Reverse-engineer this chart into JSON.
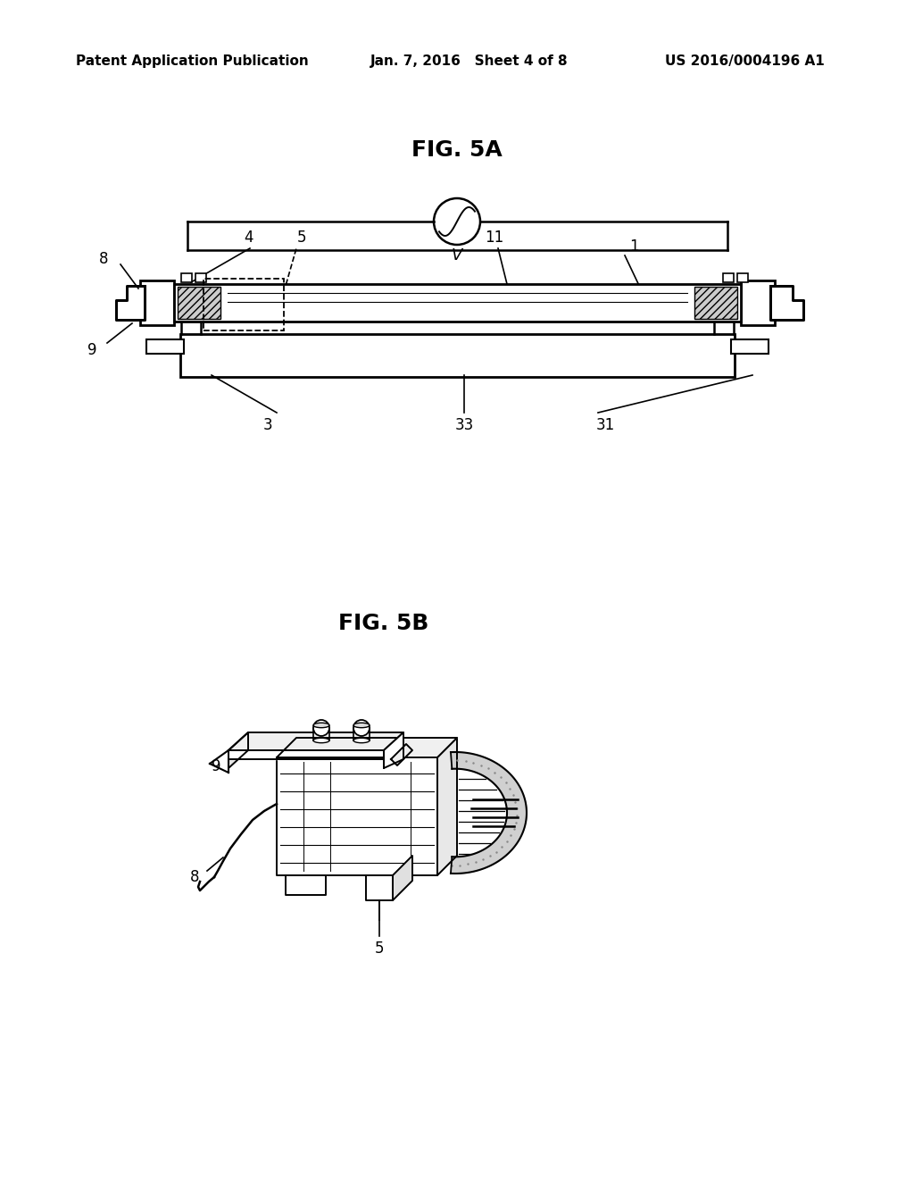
{
  "background_color": "#ffffff",
  "header_left": "Patent Application Publication",
  "header_center": "Jan. 7, 2016   Sheet 4 of 8",
  "header_right": "US 2016/0004196 A1",
  "fig5a_title": "FIG. 5A",
  "fig5b_title": "FIG. 5B",
  "line_color": "#000000",
  "text_color": "#000000",
  "label_fontsize": 13,
  "header_fontsize": 11,
  "title_fontsize": 18
}
